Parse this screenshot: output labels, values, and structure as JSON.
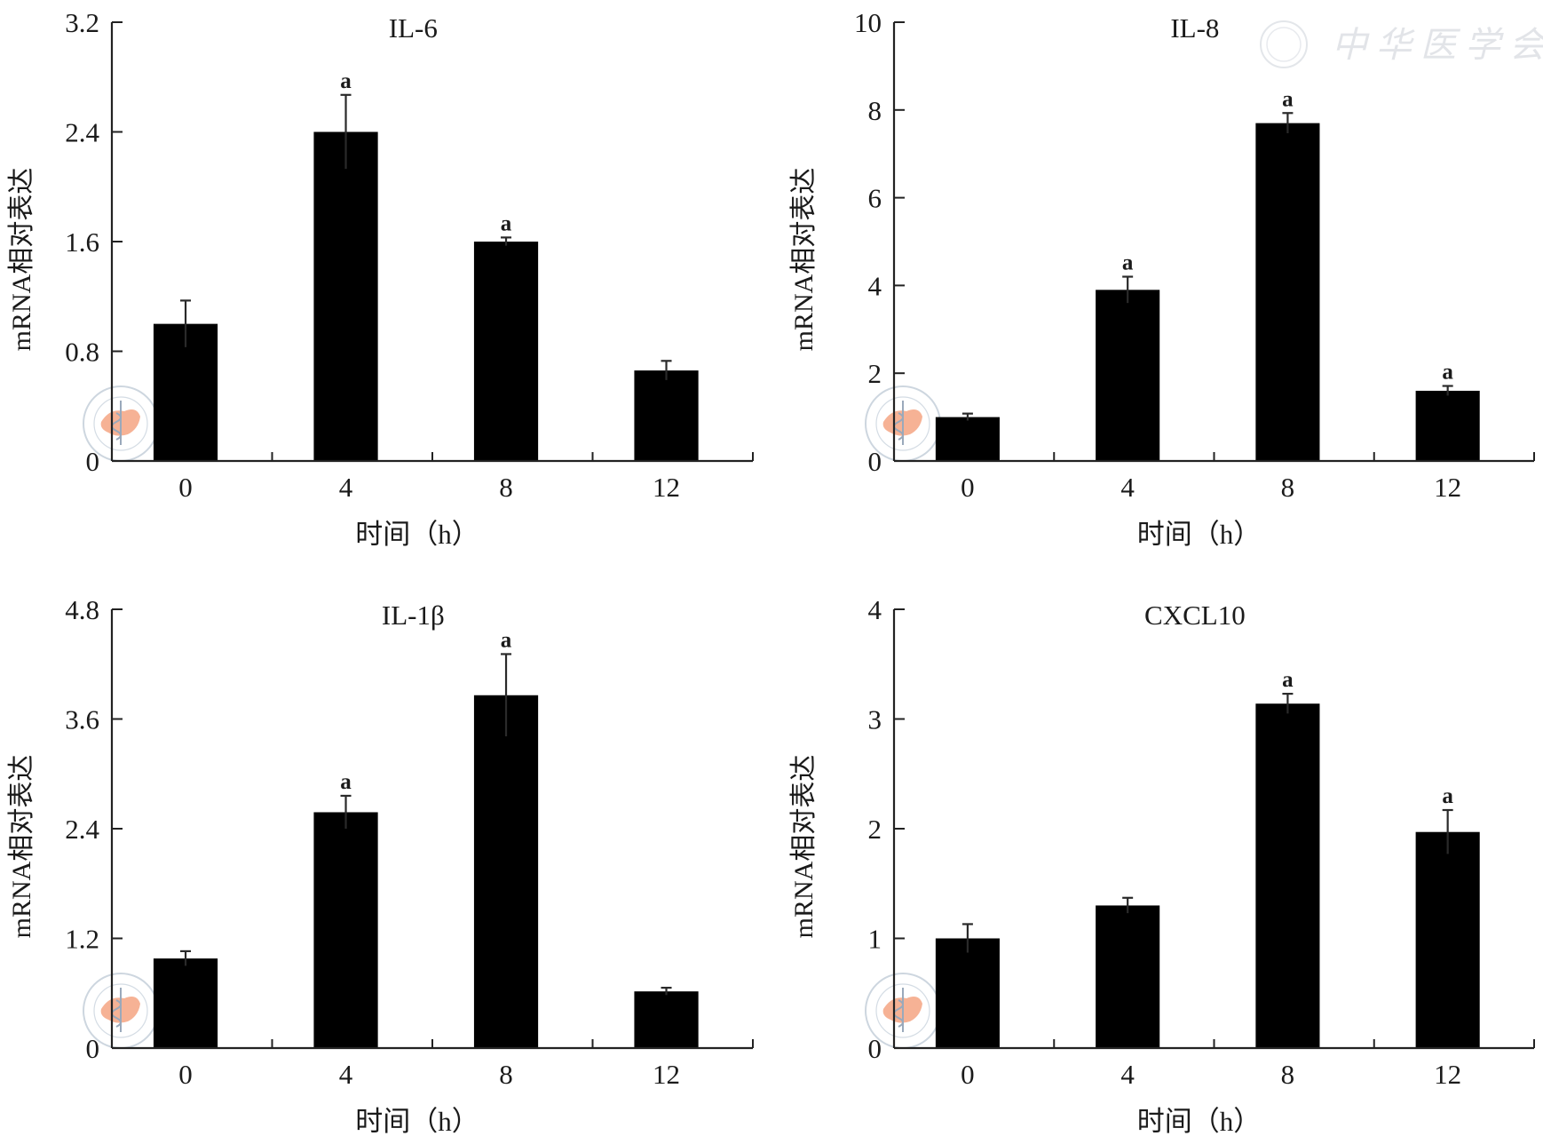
{
  "watermark": {
    "text": "中华医学会",
    "logo_label": "CHINESE MEDICAL ASSOCIATION"
  },
  "colors": {
    "bar": "#000000",
    "axis": "#222222",
    "watermark_map": "#f4a582",
    "watermark_ring": "#b8c4d2"
  },
  "chart_data": [
    {
      "type": "bar",
      "title": "IL-6",
      "xlabel": "时间（h）",
      "ylabel": "mRNA相对表达",
      "categories": [
        "0",
        "4",
        "8",
        "12"
      ],
      "values": [
        1.0,
        2.4,
        1.6,
        0.66
      ],
      "errors": [
        0.17,
        0.27,
        0.03,
        0.07
      ],
      "significance": [
        "",
        "a",
        "a",
        ""
      ],
      "ylim": [
        0,
        3.2
      ],
      "yticks": [
        0,
        0.8,
        1.6,
        2.4,
        3.2
      ],
      "ytick_labels": [
        "0",
        "0.8",
        "1.6",
        "2.4",
        "3.2"
      ],
      "grid": false,
      "legend": "none"
    },
    {
      "type": "bar",
      "title": "IL-8",
      "xlabel": "时间（h）",
      "ylabel": "mRNA相对表达",
      "categories": [
        "0",
        "4",
        "8",
        "12"
      ],
      "values": [
        1.0,
        3.9,
        7.7,
        1.6
      ],
      "errors": [
        0.08,
        0.3,
        0.23,
        0.11
      ],
      "significance": [
        "",
        "a",
        "a",
        "a"
      ],
      "ylim": [
        0,
        10
      ],
      "yticks": [
        0,
        2,
        4,
        6,
        8,
        10
      ],
      "ytick_labels": [
        "0",
        "2",
        "4",
        "6",
        "8",
        "10"
      ],
      "grid": false,
      "legend": "none"
    },
    {
      "type": "bar",
      "title": "IL-1β",
      "xlabel": "时间（h）",
      "ylabel": "mRNA相对表达",
      "categories": [
        "0",
        "4",
        "8",
        "12"
      ],
      "values": [
        0.98,
        2.58,
        3.86,
        0.62
      ],
      "errors": [
        0.08,
        0.18,
        0.45,
        0.04
      ],
      "significance": [
        "",
        "a",
        "a",
        ""
      ],
      "ylim": [
        0,
        4.8
      ],
      "yticks": [
        0,
        1.2,
        2.4,
        3.6,
        4.8
      ],
      "ytick_labels": [
        "0",
        "1.2",
        "2.4",
        "3.6",
        "4.8"
      ],
      "grid": false,
      "legend": "none"
    },
    {
      "type": "bar",
      "title": "CXCL10",
      "xlabel": "时间（h）",
      "ylabel": "mRNA相对表达",
      "categories": [
        "0",
        "4",
        "8",
        "12"
      ],
      "values": [
        1.0,
        1.3,
        3.14,
        1.97
      ],
      "errors": [
        0.13,
        0.07,
        0.09,
        0.2
      ],
      "significance": [
        "",
        "",
        "a",
        "a"
      ],
      "ylim": [
        0,
        4
      ],
      "yticks": [
        0,
        1,
        2,
        3,
        4
      ],
      "ytick_labels": [
        "0",
        "1",
        "2",
        "3",
        "4"
      ],
      "grid": false,
      "legend": "none"
    }
  ]
}
